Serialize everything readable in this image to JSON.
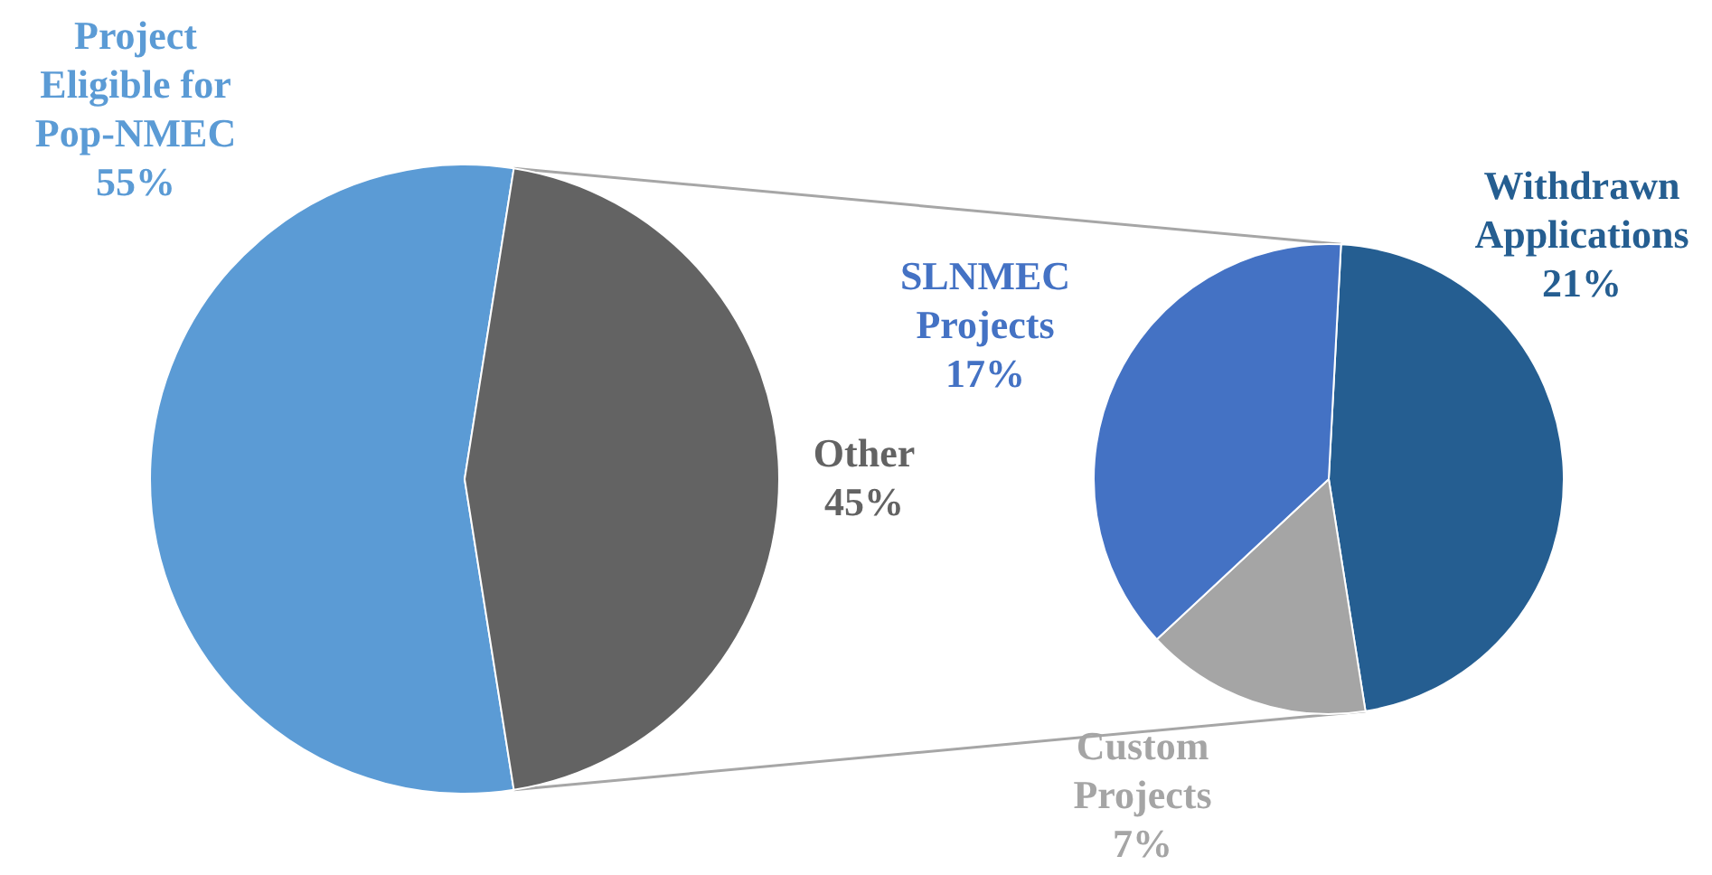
{
  "chart_data": [
    {
      "type": "pie",
      "categories": [
        "Project Eligible for Pop-NMEC",
        "Other"
      ],
      "values": [
        55,
        45
      ],
      "value_labels": [
        "55%",
        "45%"
      ],
      "colors": [
        "#5b9bd5",
        "#636363"
      ]
    },
    {
      "type": "pie",
      "categories": [
        "Withdrawn Applications",
        "Custom Projects",
        "SLNMEC Projects"
      ],
      "values": [
        21,
        7,
        17
      ],
      "value_labels": [
        "21%",
        "7%",
        "17%"
      ],
      "colors": [
        "#255e91",
        "#a5a5a5",
        "#4472c4"
      ]
    }
  ]
}
